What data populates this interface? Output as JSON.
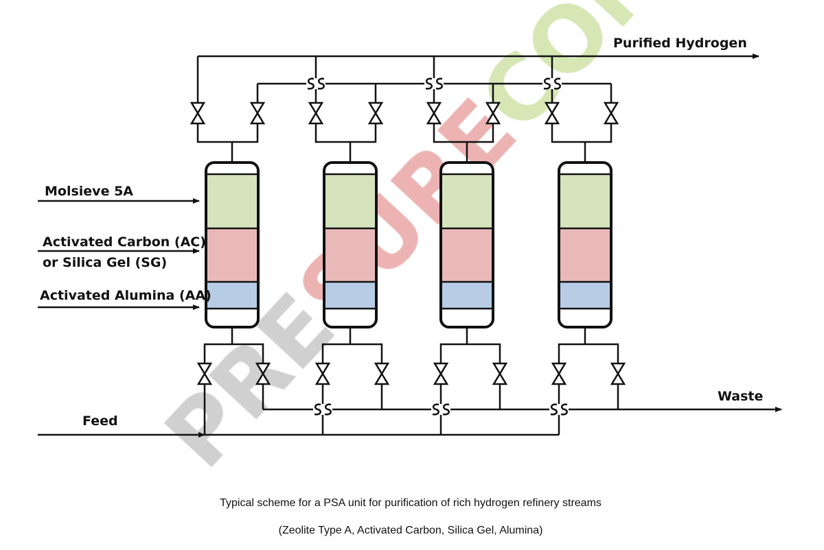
{
  "labels": {
    "purified_hydrogen": "Purified Hydrogen",
    "molsieve": "Molsieve 5A",
    "activated_carbon_line1": "Activated Carbon (AC)",
    "activated_carbon_line2": "or Silica Gel (SG)",
    "activated_alumina": "Activated Alumina (AA)",
    "feed": "Feed",
    "waste": "Waste"
  },
  "caption": {
    "line1": "Typical scheme for a PSA unit for purification of rich hydrogen refinery streams",
    "line2": "(Zeolite Type A, Activated Carbon, Silica Gel, Alumina)"
  },
  "watermark": {
    "part1": "PRE",
    "part2": "SURE",
    "part3": "CON",
    "colors": [
      "#c8c8c8",
      "#eaa6a6",
      "#cfe3a8"
    ]
  },
  "vessel_count": 4,
  "layer_colors": {
    "molsieve": "#d5e4bd",
    "carbon": "#e9b9ba",
    "alumina": "#b8cce6"
  }
}
